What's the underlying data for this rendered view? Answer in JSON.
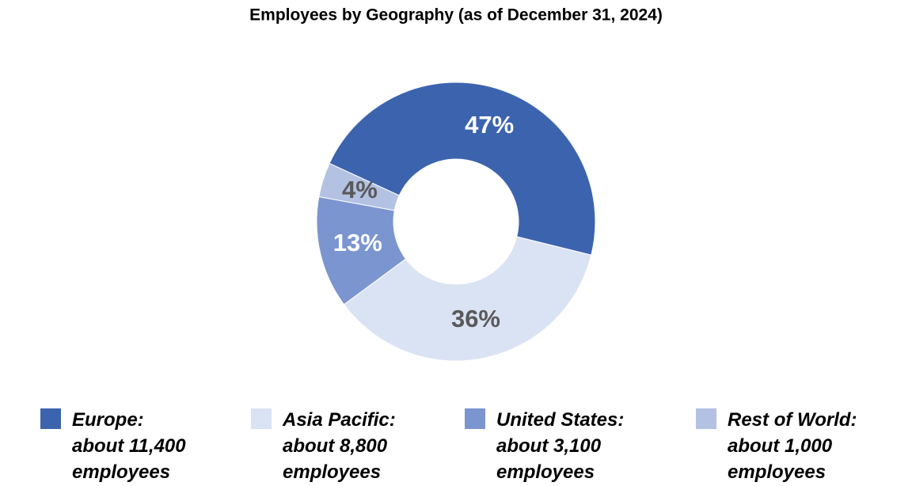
{
  "chart_data": {
    "type": "pie",
    "title": "Employees by Geography (as of December 31, 2024)",
    "categories": [
      "Europe:",
      "Asia Pacific:",
      "United States:",
      "Rest of World:"
    ],
    "legend_details": [
      "about 11,400 employees",
      "about 8,800 employees",
      "about 3,100 employees",
      "about 1,000 employees"
    ],
    "values": [
      47,
      36,
      13,
      4
    ],
    "value_labels": [
      "47%",
      "36%",
      "13%",
      "4%"
    ],
    "colors": [
      "#3c64ae",
      "#dae3f3",
      "#7b95d0",
      "#b3c1e2"
    ],
    "donut": true
  }
}
